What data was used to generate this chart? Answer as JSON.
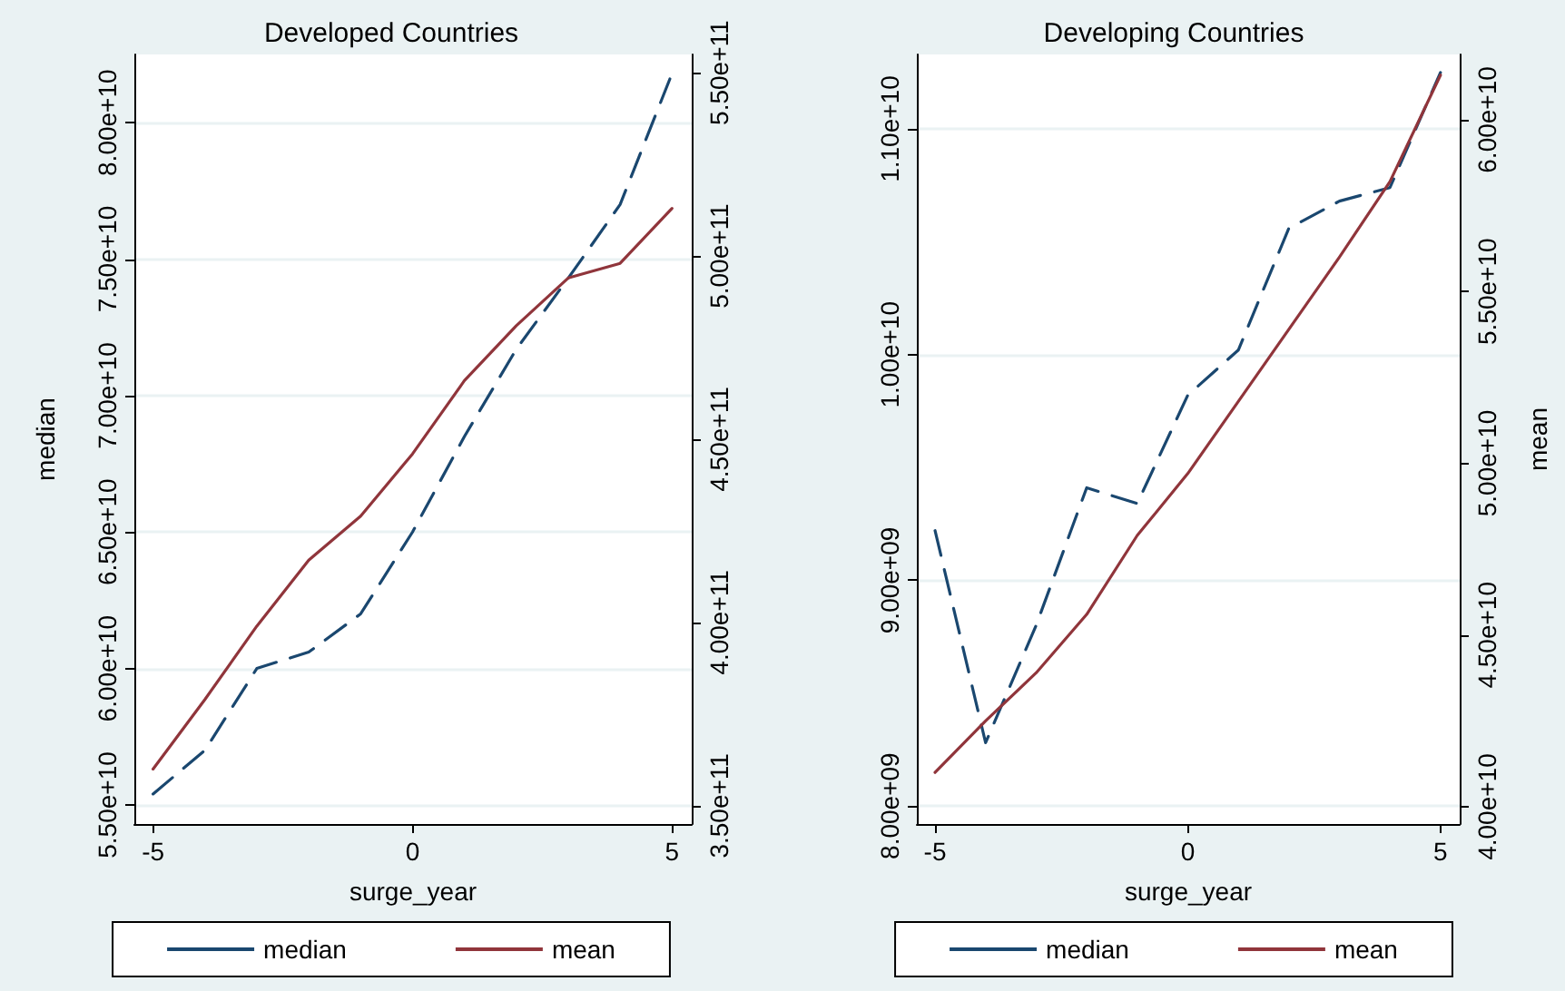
{
  "chart_data": [
    {
      "type": "line",
      "title": "Developed Countries",
      "xlabel": "surge_year",
      "ylabel": "median",
      "x": [
        -5,
        -4,
        -3,
        -2,
        -1,
        0,
        1,
        2,
        3,
        4,
        5
      ],
      "xlim": [
        -5.36,
        5.38
      ],
      "xticks": [
        -5,
        0,
        5
      ],
      "ylim": [
        54300000000,
        82500000000
      ],
      "yticks": [
        {
          "value": 55000000000,
          "label": "5.50e+10"
        },
        {
          "value": 60000000000,
          "label": "6.00e+10"
        },
        {
          "value": 65000000000,
          "label": "6.50e+10"
        },
        {
          "value": 70000000000,
          "label": "7.00e+10"
        },
        {
          "value": 75000000000,
          "label": "7.50e+10"
        },
        {
          "value": 80000000000,
          "label": "8.00e+10"
        }
      ],
      "y2lim": [
        345000000000,
        555000000000
      ],
      "y2ticks": [
        {
          "value": 350000000000,
          "label": "3.50e+11"
        },
        {
          "value": 400000000000,
          "label": "4.00e+11"
        },
        {
          "value": 450000000000,
          "label": "4.50e+11"
        },
        {
          "value": 500000000000,
          "label": "5.00e+11"
        },
        {
          "value": 550000000000,
          "label": "5.50e+11"
        }
      ],
      "grid": "y",
      "legend": "bottom",
      "series": [
        {
          "name": "median",
          "color": "#1a476f",
          "line_style": "dashed",
          "values": [
            55400000000,
            57000000000,
            60000000000,
            60600000000,
            62000000000,
            65000000000,
            68500000000,
            71700000000,
            74300000000,
            77000000000,
            81800000000
          ]
        },
        {
          "name": "mean",
          "color": "#90353b",
          "line_style": "solid",
          "axis": "y2",
          "values": [
            360000000000,
            379000000000,
            399000000000,
            417000000000,
            429000000000,
            446000000000,
            466000000000,
            481000000000,
            494000000000,
            498000000000,
            513000000000
          ]
        }
      ]
    },
    {
      "type": "line",
      "title": "Developing Countries",
      "xlabel": "surge_year",
      "y2label": "mean",
      "x": [
        -5,
        -4,
        -3,
        -2,
        -1,
        0,
        1,
        2,
        3,
        4,
        5
      ],
      "xlim": [
        -5.36,
        5.38
      ],
      "xticks": [
        -5,
        0,
        5
      ],
      "ylim": [
        7920000000,
        11330000000
      ],
      "yticks": [
        {
          "value": 8000000000,
          "label": "8.00e+09"
        },
        {
          "value": 9000000000,
          "label": "9.00e+09"
        },
        {
          "value": 10000000000,
          "label": "1.00e+10"
        },
        {
          "value": 11000000000,
          "label": "1.10e+10"
        }
      ],
      "y2lim": [
        39500000000,
        61900000000
      ],
      "y2ticks": [
        {
          "value": 40000000000,
          "label": "4.00e+10"
        },
        {
          "value": 45000000000,
          "label": "4.50e+10"
        },
        {
          "value": 50000000000,
          "label": "5.00e+10"
        },
        {
          "value": 55000000000,
          "label": "5.50e+10"
        },
        {
          "value": 60000000000,
          "label": "6.00e+10"
        }
      ],
      "grid": "y",
      "legend": "bottom",
      "series": [
        {
          "name": "median",
          "color": "#1a476f",
          "line_style": "dashed",
          "values": [
            9220000000,
            8280000000,
            8800000000,
            9410000000,
            9340000000,
            9820000000,
            10020000000,
            10560000000,
            10680000000,
            10740000000,
            11250000000
          ]
        },
        {
          "name": "mean",
          "color": "#90353b",
          "line_style": "solid",
          "axis": "y2",
          "values": [
            41000000000,
            42500000000,
            43900000000,
            45600000000,
            47900000000,
            49700000000,
            51800000000,
            53900000000,
            56000000000,
            58200000000,
            61300000000
          ]
        }
      ]
    }
  ]
}
